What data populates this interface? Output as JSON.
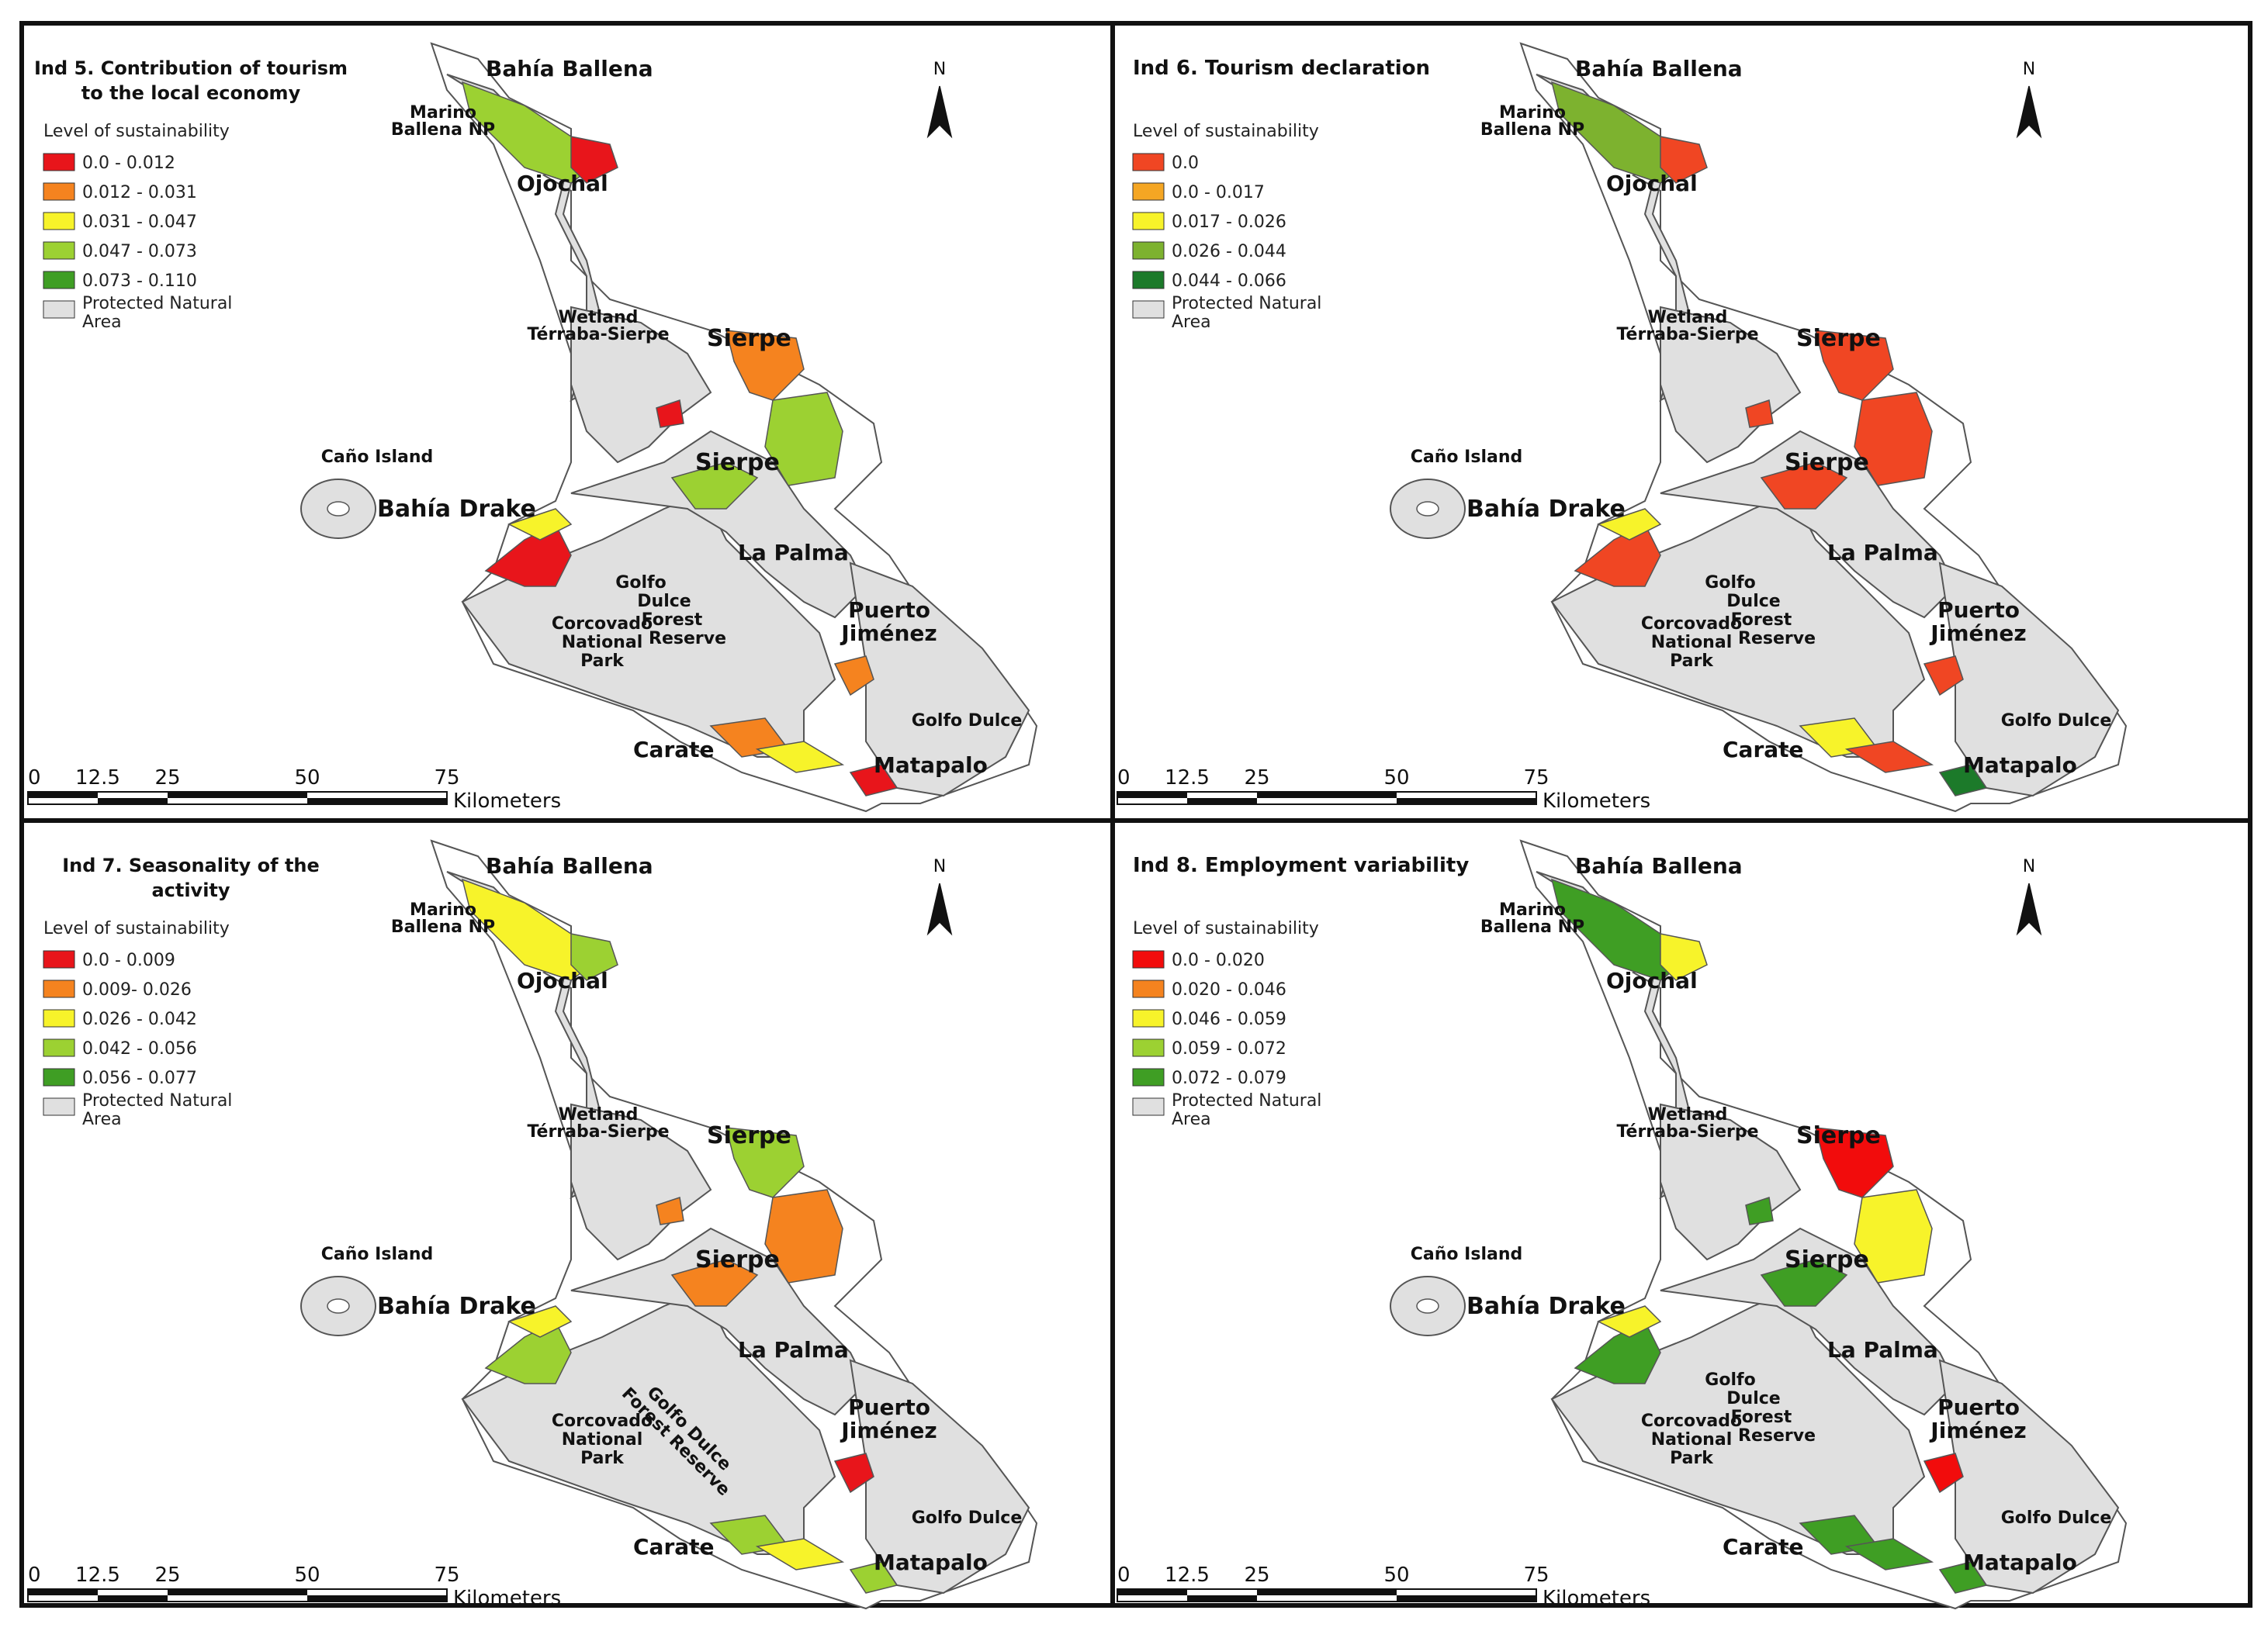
{
  "panels": [
    {
      "id": "ind5",
      "title_lines": [
        "Ind 5. Contribution of tourism",
        "to the local economy"
      ],
      "legend_title": "Level of sustainability",
      "legend": [
        {
          "label": "0.0 - 0.012",
          "color": "#e8151b"
        },
        {
          "label": "0.012 - 0.031",
          "color": "#f5831f"
        },
        {
          "label": "0.031 - 0.047",
          "color": "#f7f32a"
        },
        {
          "label": "0.047 - 0.073",
          "color": "#9cd132"
        },
        {
          "label": "0.073 - 0.110",
          "color": "#3f9e24"
        }
      ],
      "protected_lines": [
        "Protected Natural",
        "Area"
      ],
      "region_colors": {
        "north": "#9cd132",
        "north_b": "#e8151b",
        "ne": "#f5831f",
        "ne_b": "#9cd132",
        "center": "#9cd132",
        "drake": "#e8151b",
        "drake_b": "#f7f32a",
        "jimenez": "#f5831f",
        "carate": "#f5831f",
        "carate_b": "#f7f32a",
        "matapalo": "#e8151b",
        "islet": "#e8151b"
      }
    },
    {
      "id": "ind6",
      "title_lines": [
        "Ind 6. Tourism declaration"
      ],
      "legend_title": "Level of sustainability",
      "legend": [
        {
          "label": "0.0",
          "color": "#f04623"
        },
        {
          "label": "0.0 - 0.017",
          "color": "#f5a623"
        },
        {
          "label": "0.017 - 0.026",
          "color": "#f7f32a"
        },
        {
          "label": "0.026 - 0.044",
          "color": "#7db22f"
        },
        {
          "label": "0.044 - 0.066",
          "color": "#1c7a2a"
        }
      ],
      "protected_lines": [
        "Protected Natural",
        "Area"
      ],
      "region_colors": {
        "north": "#7db22f",
        "north_b": "#f04623",
        "ne": "#f04623",
        "ne_b": "#f04623",
        "center": "#f04623",
        "drake": "#f04623",
        "drake_b": "#f7f32a",
        "jimenez": "#f04623",
        "carate": "#f7f32a",
        "carate_b": "#f04623",
        "matapalo": "#1c7a2a",
        "islet": "#f04623"
      }
    },
    {
      "id": "ind7",
      "title_lines": [
        "Ind 7. Seasonality of the",
        "activity"
      ],
      "legend_title": "Level of sustainability",
      "legend": [
        {
          "label": "0.0 - 0.009",
          "color": "#e8151b"
        },
        {
          "label": "0.009- 0.026",
          "color": "#f5831f"
        },
        {
          "label": "0.026 - 0.042",
          "color": "#f7f32a"
        },
        {
          "label": "0.042 - 0.056",
          "color": "#9cd132"
        },
        {
          "label": "0.056 - 0.077",
          "color": "#3f9e24"
        }
      ],
      "protected_lines": [
        "Protected Natural",
        "Area"
      ],
      "region_colors": {
        "north": "#f7f32a",
        "north_b": "#9cd132",
        "ne": "#9cd132",
        "ne_b": "#f5831f",
        "center": "#f5831f",
        "drake": "#9cd132",
        "drake_b": "#f7f32a",
        "jimenez": "#e8151b",
        "carate": "#9cd132",
        "carate_b": "#f7f32a",
        "matapalo": "#9cd132",
        "islet": "#f5831f"
      }
    },
    {
      "id": "ind8",
      "title_lines": [
        "Ind 8. Employment variability"
      ],
      "legend_title": "Level of sustainability",
      "legend": [
        {
          "label": "0.0 - 0.020",
          "color": "#f20c0c"
        },
        {
          "label": "0.020 - 0.046",
          "color": "#f5831f"
        },
        {
          "label": "0.046 - 0.059",
          "color": "#f7f32a"
        },
        {
          "label": "0.059 - 0.072",
          "color": "#9cd132"
        },
        {
          "label": "0.072 - 0.079",
          "color": "#3f9e24"
        }
      ],
      "protected_lines": [
        "Protected Natural",
        "Area"
      ],
      "region_colors": {
        "north": "#3f9e24",
        "north_b": "#f7f32a",
        "ne": "#f20c0c",
        "ne_b": "#f7f32a",
        "center": "#3f9e24",
        "drake": "#3f9e24",
        "drake_b": "#f7f32a",
        "jimenez": "#f20c0c",
        "carate": "#3f9e24",
        "carate_b": "#3f9e24",
        "matapalo": "#3f9e24",
        "islet": "#3f9e24"
      }
    }
  ],
  "places": {
    "bahia_ballena": "Bahía Ballena",
    "marino": [
      "Marino",
      "Ballena NP"
    ],
    "ojochal": "Ojochal",
    "wetland": [
      "Wetland",
      "Térraba-Sierpe"
    ],
    "sierpe": "Sierpe",
    "cano": "Caño Island",
    "bahia_drake": "Bahía Drake",
    "la_palma": "La Palma",
    "golfo_dulce_fr": [
      "Golfo",
      "Dulce",
      "Forest",
      "Reserve"
    ],
    "golfo_dulce_fr_rotated": [
      "Golfo Dulce",
      "Forest Reserve"
    ],
    "corcovado": [
      "Corcovado",
      "National",
      "Park"
    ],
    "puerto_jimenez": [
      "Puerto",
      "Jiménez"
    ],
    "golfo_dulce": "Golfo Dulce",
    "carate": "Carate",
    "matapalo": "Matapalo"
  },
  "north_label": "N",
  "scale": {
    "ticks": [
      "0",
      "12.5",
      "25",
      "50",
      "75"
    ],
    "unit": "Kilometers"
  },
  "colors": {
    "protected": "#e0e0e0",
    "land": "#ffffff",
    "outline": "#555555",
    "border": "#111111"
  }
}
